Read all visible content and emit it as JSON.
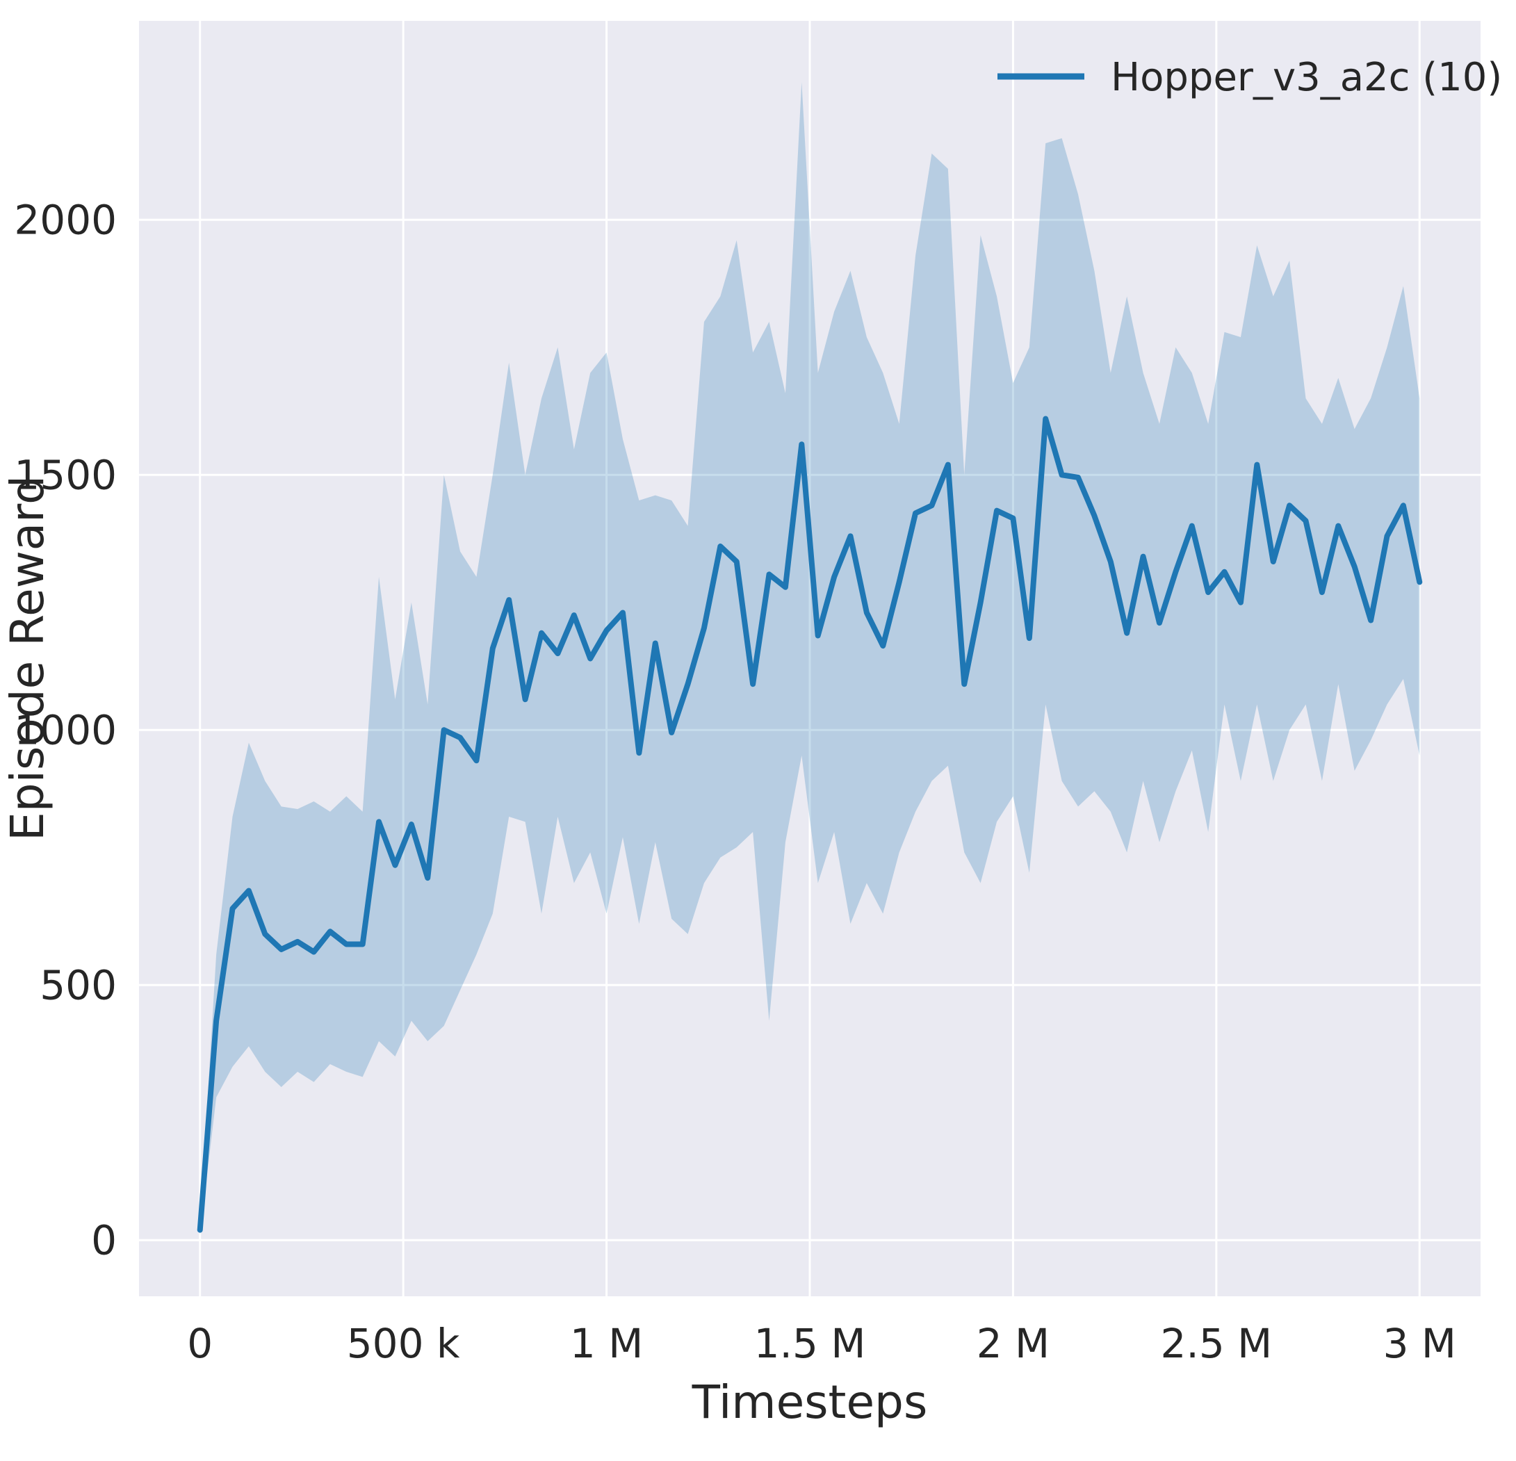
{
  "chart_data": {
    "type": "line",
    "title": "",
    "xlabel": "Timesteps",
    "ylabel": "Episode Reward",
    "grid": true,
    "legend_position": "upper right",
    "background": "#eaeaf2",
    "grid_color": "#ffffff",
    "band_fill": "rgba(31,119,180,0.25)",
    "xlim": [
      -150000,
      3150000
    ],
    "ylim": [
      -110,
      2390
    ],
    "x_ticks": [
      0,
      500000,
      1000000,
      1500000,
      2000000,
      2500000,
      3000000
    ],
    "x_tick_labels": [
      "0",
      "500 k",
      "1 M",
      "1.5 M",
      "2 M",
      "2.5 M",
      "3 M"
    ],
    "y_ticks": [
      0,
      500,
      1000,
      1500,
      2000
    ],
    "y_tick_labels": [
      "0",
      "500",
      "1000",
      "1500",
      "2000"
    ],
    "legend": [
      {
        "label": "Hopper_v3_a2c (10)",
        "color": "#1f77b4"
      }
    ],
    "x": [
      0,
      40000,
      80000,
      120000,
      160000,
      200000,
      240000,
      280000,
      320000,
      360000,
      400000,
      440000,
      480000,
      520000,
      560000,
      600000,
      640000,
      680000,
      720000,
      760000,
      800000,
      840000,
      880000,
      920000,
      960000,
      1000000,
      1040000,
      1080000,
      1120000,
      1160000,
      1200000,
      1240000,
      1280000,
      1320000,
      1360000,
      1400000,
      1440000,
      1480000,
      1520000,
      1560000,
      1600000,
      1640000,
      1680000,
      1720000,
      1760000,
      1800000,
      1840000,
      1880000,
      1920000,
      1960000,
      2000000,
      2040000,
      2080000,
      2120000,
      2160000,
      2200000,
      2240000,
      2280000,
      2320000,
      2360000,
      2400000,
      2440000,
      2480000,
      2520000,
      2560000,
      2600000,
      2640000,
      2680000,
      2720000,
      2760000,
      2800000,
      2840000,
      2880000,
      2920000,
      2960000,
      3000000
    ],
    "series": [
      {
        "name": "Hopper_v3_a2c (10)",
        "color": "#1f77b4",
        "mean": [
          20,
          430,
          650,
          685,
          600,
          570,
          585,
          565,
          605,
          580,
          580,
          820,
          735,
          815,
          710,
          1000,
          985,
          940,
          1160,
          1255,
          1060,
          1190,
          1150,
          1225,
          1140,
          1195,
          1230,
          955,
          1170,
          995,
          1090,
          1200,
          1360,
          1330,
          1090,
          1305,
          1280,
          1560,
          1185,
          1300,
          1380,
          1230,
          1165,
          1290,
          1425,
          1440,
          1520,
          1090,
          1250,
          1430,
          1415,
          1180,
          1610,
          1500,
          1495,
          1420,
          1330,
          1190,
          1340,
          1210,
          1310,
          1400,
          1270,
          1310,
          1250,
          1520,
          1330,
          1440,
          1410,
          1270,
          1400,
          1320,
          1215,
          1380,
          1440,
          1290
        ],
        "lower": [
          10,
          280,
          340,
          380,
          330,
          300,
          330,
          310,
          345,
          330,
          320,
          390,
          360,
          430,
          390,
          420,
          490,
          560,
          640,
          830,
          820,
          640,
          830,
          700,
          760,
          640,
          790,
          620,
          780,
          630,
          600,
          700,
          750,
          770,
          800,
          430,
          780,
          950,
          700,
          800,
          620,
          700,
          640,
          760,
          840,
          900,
          930,
          760,
          700,
          820,
          870,
          720,
          1050,
          900,
          850,
          880,
          840,
          760,
          900,
          780,
          880,
          960,
          800,
          1050,
          900,
          1050,
          900,
          1000,
          1050,
          900,
          1090,
          920,
          980,
          1050,
          1100,
          950
        ],
        "upper": [
          30,
          560,
          830,
          975,
          900,
          850,
          845,
          860,
          840,
          870,
          840,
          1300,
          1060,
          1250,
          1050,
          1500,
          1350,
          1300,
          1500,
          1720,
          1500,
          1650,
          1750,
          1550,
          1700,
          1740,
          1570,
          1450,
          1460,
          1450,
          1400,
          1800,
          1850,
          1960,
          1740,
          1800,
          1660,
          2270,
          1700,
          1820,
          1900,
          1770,
          1700,
          1600,
          1930,
          2130,
          2100,
          1500,
          1970,
          1850,
          1680,
          1750,
          2150,
          2160,
          2050,
          1900,
          1700,
          1850,
          1700,
          1600,
          1750,
          1700,
          1600,
          1780,
          1770,
          1950,
          1850,
          1920,
          1650,
          1600,
          1690,
          1590,
          1650,
          1750,
          1870,
          1650
        ]
      }
    ]
  }
}
